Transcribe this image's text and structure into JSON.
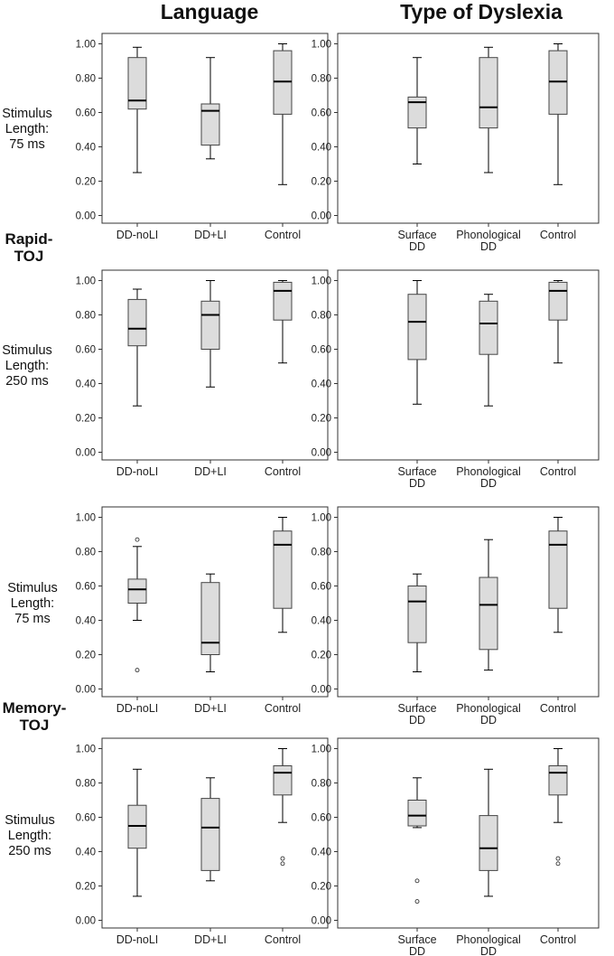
{
  "headers": {
    "language": "Language",
    "dyslexia": "Type of Dyslexia"
  },
  "groups": {
    "rapid": [
      "Rapid-",
      "TOJ"
    ],
    "memory": [
      "Memory-",
      "TOJ"
    ]
  },
  "row_labels": [
    [
      "Stimulus",
      "Length:",
      "75 ms"
    ],
    [
      "Stimulus",
      "Length:",
      "250 ms"
    ],
    [
      "Stimulus",
      "Length:",
      "75 ms"
    ],
    [
      "Stimulus",
      "Length:",
      "250 ms"
    ]
  ],
  "chart_data": [
    {
      "type": "box",
      "row": 0,
      "col": 0,
      "ylim": [
        0,
        1.0
      ],
      "yticks": [
        "0.00",
        "0.20",
        "0.40",
        "0.60",
        "0.80",
        "1.00"
      ],
      "categories": [
        [
          "DD-noLI"
        ],
        [
          "DD+LI"
        ],
        [
          "Control"
        ]
      ],
      "boxes": [
        {
          "min": 0.25,
          "q1": 0.62,
          "median": 0.67,
          "q3": 0.92,
          "max": 0.98,
          "outliers": []
        },
        {
          "min": 0.33,
          "q1": 0.41,
          "median": 0.61,
          "q3": 0.65,
          "max": 0.92,
          "outliers": []
        },
        {
          "min": 0.18,
          "q1": 0.59,
          "median": 0.78,
          "q3": 0.96,
          "max": 1.0,
          "outliers": []
        }
      ]
    },
    {
      "type": "box",
      "row": 0,
      "col": 1,
      "ylim": [
        0,
        1.0
      ],
      "yticks": [
        "0.00",
        "0.20",
        "0.40",
        "0.60",
        "0.80",
        "1.00"
      ],
      "categories": [
        [
          "Surface",
          "DD"
        ],
        [
          "Phonological",
          "DD"
        ],
        [
          "Control"
        ]
      ],
      "boxes": [
        {
          "min": 0.3,
          "q1": 0.51,
          "median": 0.66,
          "q3": 0.69,
          "max": 0.92,
          "outliers": []
        },
        {
          "min": 0.25,
          "q1": 0.51,
          "median": 0.63,
          "q3": 0.92,
          "max": 0.98,
          "outliers": []
        },
        {
          "min": 0.18,
          "q1": 0.59,
          "median": 0.78,
          "q3": 0.96,
          "max": 1.0,
          "outliers": []
        }
      ]
    },
    {
      "type": "box",
      "row": 1,
      "col": 0,
      "ylim": [
        0,
        1.0
      ],
      "yticks": [
        "0.00",
        "0.20",
        "0.40",
        "0.60",
        "0.80",
        "1.00"
      ],
      "categories": [
        [
          "DD-noLI"
        ],
        [
          "DD+LI"
        ],
        [
          "Control"
        ]
      ],
      "boxes": [
        {
          "min": 0.27,
          "q1": 0.62,
          "median": 0.72,
          "q3": 0.89,
          "max": 0.95,
          "outliers": []
        },
        {
          "min": 0.38,
          "q1": 0.6,
          "median": 0.8,
          "q3": 0.88,
          "max": 1.0,
          "outliers": []
        },
        {
          "min": 0.52,
          "q1": 0.77,
          "median": 0.94,
          "q3": 0.99,
          "max": 1.0,
          "outliers": []
        }
      ]
    },
    {
      "type": "box",
      "row": 1,
      "col": 1,
      "ylim": [
        0,
        1.0
      ],
      "yticks": [
        "0.00",
        "0.20",
        "0.40",
        "0.60",
        "0.80",
        "1.00"
      ],
      "categories": [
        [
          "Surface",
          "DD"
        ],
        [
          "Phonological",
          "DD"
        ],
        [
          "Control"
        ]
      ],
      "boxes": [
        {
          "min": 0.28,
          "q1": 0.54,
          "median": 0.76,
          "q3": 0.92,
          "max": 1.0,
          "outliers": []
        },
        {
          "min": 0.27,
          "q1": 0.57,
          "median": 0.75,
          "q3": 0.88,
          "max": 0.92,
          "outliers": []
        },
        {
          "min": 0.52,
          "q1": 0.77,
          "median": 0.94,
          "q3": 0.99,
          "max": 1.0,
          "outliers": []
        }
      ]
    },
    {
      "type": "box",
      "row": 2,
      "col": 0,
      "ylim": [
        0,
        1.0
      ],
      "yticks": [
        "0.00",
        "0.20",
        "0.40",
        "0.60",
        "0.80",
        "1.00"
      ],
      "categories": [
        [
          "DD-noLI"
        ],
        [
          "DD+LI"
        ],
        [
          "Control"
        ]
      ],
      "boxes": [
        {
          "min": 0.4,
          "q1": 0.5,
          "median": 0.58,
          "q3": 0.64,
          "max": 0.83,
          "outliers": [
            0.87,
            0.11
          ]
        },
        {
          "min": 0.1,
          "q1": 0.2,
          "median": 0.27,
          "q3": 0.62,
          "max": 0.67,
          "outliers": []
        },
        {
          "min": 0.33,
          "q1": 0.47,
          "median": 0.84,
          "q3": 0.92,
          "max": 1.0,
          "outliers": []
        }
      ]
    },
    {
      "type": "box",
      "row": 2,
      "col": 1,
      "ylim": [
        0,
        1.0
      ],
      "yticks": [
        "0.00",
        "0.20",
        "0.40",
        "0.60",
        "0.80",
        "1.00"
      ],
      "categories": [
        [
          "Surface",
          "DD"
        ],
        [
          "Phonological",
          "DD"
        ],
        [
          "Control"
        ]
      ],
      "boxes": [
        {
          "min": 0.1,
          "q1": 0.27,
          "median": 0.51,
          "q3": 0.6,
          "max": 0.67,
          "outliers": []
        },
        {
          "min": 0.11,
          "q1": 0.23,
          "median": 0.49,
          "q3": 0.65,
          "max": 0.87,
          "outliers": []
        },
        {
          "min": 0.33,
          "q1": 0.47,
          "median": 0.84,
          "q3": 0.92,
          "max": 1.0,
          "outliers": []
        }
      ]
    },
    {
      "type": "box",
      "row": 3,
      "col": 0,
      "ylim": [
        0,
        1.0
      ],
      "yticks": [
        "0.00",
        "0.20",
        "0.40",
        "0.60",
        "0.80",
        "1.00"
      ],
      "categories": [
        [
          "DD-noLI"
        ],
        [
          "DD+LI"
        ],
        [
          "Control"
        ]
      ],
      "boxes": [
        {
          "min": 0.14,
          "q1": 0.42,
          "median": 0.55,
          "q3": 0.67,
          "max": 0.88,
          "outliers": []
        },
        {
          "min": 0.23,
          "q1": 0.29,
          "median": 0.54,
          "q3": 0.71,
          "max": 0.83,
          "outliers": []
        },
        {
          "min": 0.57,
          "q1": 0.73,
          "median": 0.86,
          "q3": 0.9,
          "max": 1.0,
          "outliers": [
            0.36,
            0.33
          ]
        }
      ]
    },
    {
      "type": "box",
      "row": 3,
      "col": 1,
      "ylim": [
        0,
        1.0
      ],
      "yticks": [
        "0.00",
        "0.20",
        "0.40",
        "0.60",
        "0.80",
        "1.00"
      ],
      "categories": [
        [
          "Surface",
          "DD"
        ],
        [
          "Phonological",
          "DD"
        ],
        [
          "Control"
        ]
      ],
      "boxes": [
        {
          "min": 0.54,
          "q1": 0.55,
          "median": 0.61,
          "q3": 0.7,
          "max": 0.83,
          "outliers": [
            0.23,
            0.11
          ]
        },
        {
          "min": 0.14,
          "q1": 0.29,
          "median": 0.42,
          "q3": 0.61,
          "max": 0.88,
          "outliers": []
        },
        {
          "min": 0.57,
          "q1": 0.73,
          "median": 0.86,
          "q3": 0.9,
          "max": 1.0,
          "outliers": [
            0.36,
            0.33
          ]
        }
      ]
    }
  ],
  "colors": {
    "box_fill": "#dcdcdc",
    "box_edge": "#444444",
    "median": "#000000",
    "frame": "#333333"
  }
}
